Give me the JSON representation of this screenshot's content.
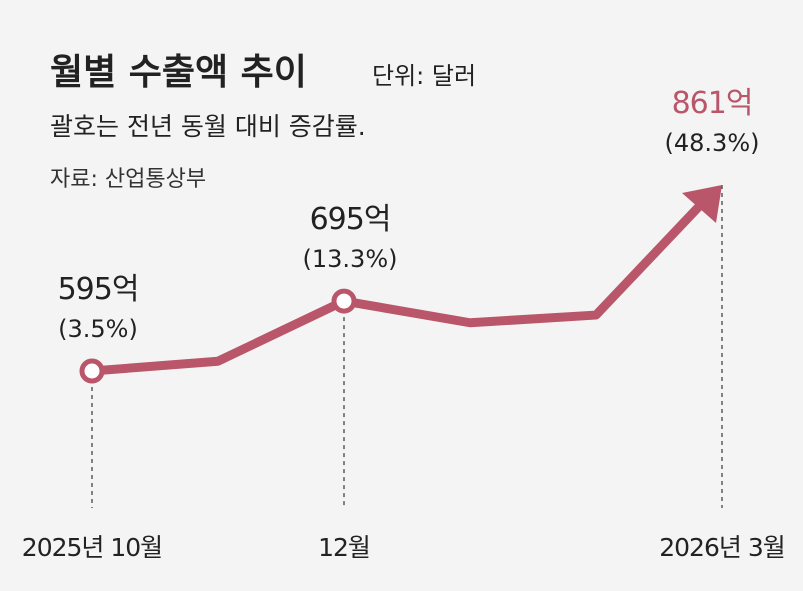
{
  "chart_data": {
    "type": "line",
    "title": "월별 수출액 추이",
    "unit": "단위: 달러",
    "subtitle": "괄호는 전년 동월 대비 증감률.",
    "source": "자료: 산업통상부",
    "categories": [
      "2025년 10월",
      null,
      "12월",
      null,
      null,
      "2026년 3월"
    ],
    "values": [
      595,
      609,
      695,
      664,
      675,
      861
    ],
    "value_labels": [
      "595억",
      null,
      "695억",
      null,
      null,
      "861억"
    ],
    "change": [
      3.5,
      null,
      13.3,
      null,
      null,
      48.3
    ],
    "change_labels": [
      "(3.5%)",
      null,
      "(13.3%)",
      null,
      null,
      "(48.3%)"
    ],
    "color": "#b9566a"
  }
}
